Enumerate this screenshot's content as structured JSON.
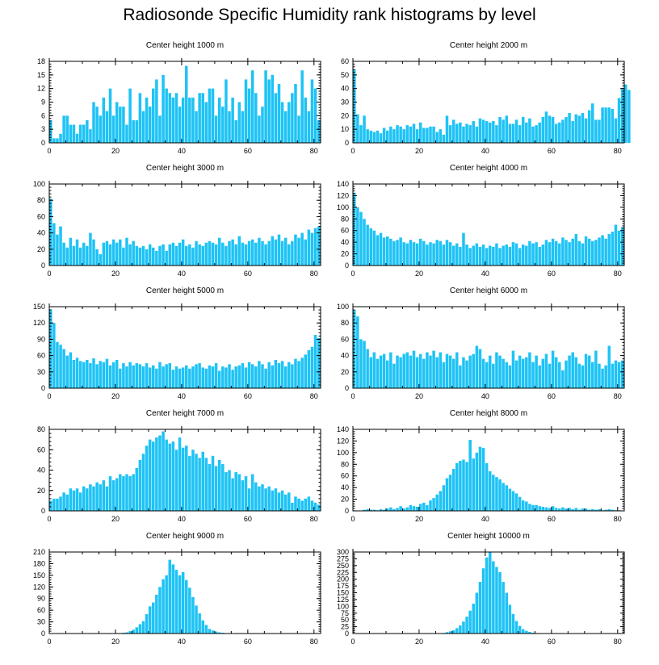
{
  "title": "Radiosonde Specific Humidity rank histograms by level",
  "colors": {
    "bar": "#1ec3f5",
    "axis": "#000000"
  },
  "chart_data": [
    {
      "type": "bar",
      "title": "Center height 1000 m",
      "xlim": [
        0,
        82
      ],
      "ylim": [
        0,
        18
      ],
      "xticks": [
        0,
        20,
        40,
        60,
        80
      ],
      "yticks": [
        0,
        3,
        6,
        9,
        12,
        15,
        18
      ],
      "values": [
        5,
        1,
        1,
        2,
        6,
        6,
        4,
        4,
        2,
        4,
        4,
        5,
        3,
        9,
        8,
        6,
        10,
        7,
        12,
        6,
        9,
        8,
        8,
        4,
        12,
        5,
        5,
        11,
        7,
        10,
        8,
        12,
        14,
        6,
        15,
        12,
        11,
        10,
        11,
        8,
        10,
        17,
        10,
        10,
        7,
        11,
        11,
        9,
        12,
        12,
        6,
        10,
        8,
        14,
        7,
        10,
        5,
        9,
        7,
        14,
        12,
        16,
        11,
        6,
        8,
        16,
        14,
        15,
        11,
        13,
        9,
        7,
        9,
        11,
        13,
        6,
        16,
        10,
        7,
        14,
        12,
        5
      ]
    },
    {
      "type": "bar",
      "title": "Center height 2000 m",
      "xlim": [
        0,
        82
      ],
      "ylim": [
        0,
        60
      ],
      "xticks": [
        0,
        20,
        40,
        60,
        80
      ],
      "yticks": [
        0,
        10,
        20,
        30,
        40,
        50,
        60
      ],
      "values": [
        54,
        21,
        13,
        20,
        10,
        9,
        8,
        9,
        7,
        11,
        9,
        12,
        10,
        13,
        12,
        10,
        13,
        12,
        14,
        10,
        15,
        11,
        11,
        12,
        12,
        8,
        10,
        6,
        20,
        13,
        17,
        14,
        15,
        12,
        14,
        13,
        16,
        12,
        18,
        17,
        16,
        15,
        16,
        13,
        19,
        17,
        20,
        14,
        14,
        17,
        13,
        19,
        15,
        18,
        12,
        13,
        15,
        19,
        23,
        20,
        19,
        14,
        15,
        17,
        19,
        22,
        16,
        21,
        20,
        22,
        18,
        24,
        29,
        17,
        17,
        26,
        26,
        26,
        25,
        18,
        33,
        40,
        43,
        39
      ]
    },
    {
      "type": "bar",
      "title": "Center height 3000 m",
      "xlim": [
        0,
        82
      ],
      "ylim": [
        0,
        100
      ],
      "xticks": [
        0,
        20,
        40,
        60,
        80
      ],
      "yticks": [
        0,
        20,
        40,
        60,
        80,
        100
      ],
      "values": [
        82,
        52,
        38,
        48,
        28,
        22,
        34,
        24,
        32,
        22,
        28,
        24,
        40,
        32,
        20,
        14,
        28,
        30,
        26,
        32,
        28,
        32,
        22,
        34,
        26,
        30,
        24,
        22,
        24,
        20,
        26,
        22,
        18,
        24,
        26,
        18,
        26,
        28,
        24,
        28,
        32,
        24,
        26,
        22,
        30,
        26,
        24,
        28,
        30,
        28,
        26,
        34,
        28,
        24,
        30,
        32,
        26,
        36,
        28,
        26,
        30,
        32,
        28,
        34,
        30,
        26,
        30,
        36,
        32,
        38,
        30,
        34,
        26,
        30,
        38,
        34,
        40,
        32,
        44,
        40,
        46,
        48
      ]
    },
    {
      "type": "bar",
      "title": "Center height 4000 m",
      "xlim": [
        0,
        82
      ],
      "ylim": [
        0,
        140
      ],
      "xticks": [
        0,
        20,
        40,
        60,
        80
      ],
      "yticks": [
        0,
        20,
        40,
        60,
        80,
        100,
        120,
        140
      ],
      "values": [
        125,
        100,
        92,
        80,
        70,
        64,
        60,
        52,
        56,
        48,
        50,
        46,
        42,
        44,
        48,
        40,
        38,
        44,
        40,
        38,
        46,
        42,
        36,
        40,
        38,
        44,
        42,
        36,
        44,
        40,
        34,
        38,
        32,
        56,
        36,
        30,
        34,
        38,
        32,
        36,
        30,
        34,
        32,
        38,
        30,
        34,
        36,
        32,
        40,
        38,
        30,
        36,
        34,
        42,
        38,
        40,
        32,
        36,
        44,
        40,
        46,
        42,
        38,
        48,
        44,
        40,
        46,
        54,
        42,
        38,
        50,
        46,
        42,
        44,
        48,
        52,
        46,
        54,
        58,
        70,
        60,
        66
      ]
    },
    {
      "type": "bar",
      "title": "Center height 5000 m",
      "xlim": [
        0,
        82
      ],
      "ylim": [
        0,
        150
      ],
      "xticks": [
        0,
        20,
        40,
        60,
        80
      ],
      "yticks": [
        0,
        30,
        60,
        90,
        120,
        150
      ],
      "values": [
        145,
        120,
        85,
        80,
        72,
        60,
        66,
        52,
        56,
        50,
        48,
        52,
        46,
        55,
        44,
        50,
        48,
        54,
        42,
        48,
        52,
        36,
        46,
        40,
        48,
        42,
        46,
        44,
        40,
        46,
        38,
        42,
        36,
        48,
        40,
        44,
        46,
        34,
        40,
        36,
        38,
        42,
        36,
        40,
        44,
        46,
        38,
        36,
        42,
        40,
        46,
        32,
        40,
        38,
        44,
        34,
        40,
        42,
        46,
        38,
        48,
        44,
        40,
        50,
        44,
        36,
        48,
        42,
        52,
        46,
        50,
        40,
        48,
        44,
        54,
        50,
        56,
        62,
        70,
        76,
        98,
        92
      ]
    },
    {
      "type": "bar",
      "title": "Center height 6000 m",
      "xlim": [
        0,
        82
      ],
      "ylim": [
        0,
        100
      ],
      "xticks": [
        0,
        20,
        40,
        60,
        80
      ],
      "yticks": [
        0,
        20,
        40,
        60,
        80,
        100
      ],
      "values": [
        96,
        88,
        60,
        58,
        48,
        38,
        44,
        36,
        40,
        42,
        34,
        44,
        30,
        40,
        38,
        42,
        44,
        40,
        46,
        38,
        42,
        36,
        44,
        40,
        46,
        38,
        44,
        32,
        42,
        40,
        36,
        44,
        28,
        38,
        34,
        40,
        42,
        52,
        48,
        36,
        32,
        40,
        30,
        44,
        40,
        36,
        32,
        28,
        46,
        34,
        40,
        36,
        38,
        44,
        32,
        40,
        28,
        36,
        42,
        30,
        46,
        38,
        32,
        22,
        34,
        40,
        44,
        38,
        30,
        28,
        42,
        40,
        32,
        46,
        30,
        24,
        28,
        52,
        30,
        34,
        32,
        34
      ]
    },
    {
      "type": "bar",
      "title": "Center height 7000 m",
      "xlim": [
        0,
        82
      ],
      "ylim": [
        0,
        80
      ],
      "xticks": [
        0,
        20,
        40,
        60,
        80
      ],
      "yticks": [
        0,
        20,
        40,
        60,
        80
      ],
      "values": [
        10,
        12,
        12,
        14,
        18,
        16,
        22,
        20,
        22,
        18,
        24,
        22,
        26,
        24,
        28,
        26,
        30,
        24,
        34,
        30,
        32,
        36,
        34,
        36,
        34,
        36,
        42,
        50,
        56,
        64,
        70,
        68,
        72,
        74,
        78,
        70,
        66,
        68,
        60,
        72,
        62,
        64,
        54,
        60,
        56,
        52,
        58,
        52,
        46,
        54,
        44,
        50,
        46,
        38,
        40,
        32,
        38,
        36,
        30,
        34,
        22,
        36,
        28,
        24,
        26,
        22,
        24,
        20,
        22,
        18,
        20,
        16,
        18,
        8,
        14,
        12,
        10,
        12,
        14,
        10,
        8,
        6
      ]
    },
    {
      "type": "bar",
      "title": "Center height 8000 m",
      "xlim": [
        0,
        82
      ],
      "ylim": [
        0,
        140
      ],
      "xticks": [
        0,
        20,
        40,
        60,
        80
      ],
      "yticks": [
        0,
        20,
        40,
        60,
        80,
        100,
        120,
        140
      ],
      "values": [
        1,
        0,
        0,
        2,
        3,
        2,
        2,
        1,
        3,
        2,
        4,
        6,
        3,
        5,
        8,
        4,
        6,
        10,
        8,
        7,
        12,
        14,
        10,
        18,
        22,
        28,
        34,
        44,
        56,
        62,
        72,
        82,
        86,
        88,
        84,
        122,
        90,
        100,
        110,
        108,
        82,
        68,
        62,
        58,
        54,
        48,
        44,
        38,
        34,
        30,
        24,
        18,
        16,
        12,
        10,
        10,
        8,
        7,
        6,
        5,
        8,
        5,
        4,
        6,
        4,
        5,
        3,
        5,
        2,
        4,
        4,
        2,
        3,
        2,
        3,
        1,
        2,
        3,
        2,
        1,
        1,
        0
      ]
    },
    {
      "type": "bar",
      "title": "Center height 9000 m",
      "xlim": [
        0,
        82
      ],
      "ylim": [
        0,
        210
      ],
      "xticks": [
        0,
        20,
        40,
        60,
        80
      ],
      "yticks": [
        0,
        30,
        60,
        90,
        120,
        150,
        180,
        210
      ],
      "values": [
        0,
        0,
        0,
        0,
        0,
        0,
        0,
        0,
        0,
        0,
        0,
        0,
        0,
        0,
        0,
        0,
        0,
        0,
        0,
        0,
        0,
        0,
        2,
        3,
        6,
        10,
        16,
        24,
        32,
        50,
        70,
        80,
        100,
        120,
        140,
        150,
        190,
        178,
        164,
        150,
        158,
        138,
        118,
        94,
        72,
        52,
        34,
        22,
        12,
        8,
        5,
        3,
        2,
        1,
        1,
        1,
        0,
        0,
        0,
        0,
        0,
        0,
        0,
        0,
        0,
        0,
        0,
        0,
        0,
        0,
        0,
        0,
        0,
        0,
        0,
        0,
        0,
        0,
        0,
        0,
        0,
        0
      ]
    },
    {
      "type": "bar",
      "title": "Center height 10000 m",
      "xlim": [
        0,
        82
      ],
      "ylim": [
        0,
        300
      ],
      "xticks": [
        0,
        20,
        40,
        60,
        80
      ],
      "yticks": [
        0,
        25,
        50,
        75,
        100,
        125,
        150,
        175,
        200,
        225,
        250,
        275,
        300
      ],
      "values": [
        0,
        0,
        0,
        0,
        0,
        0,
        0,
        0,
        0,
        0,
        0,
        0,
        0,
        0,
        0,
        0,
        0,
        0,
        0,
        0,
        0,
        0,
        0,
        0,
        0,
        0,
        1,
        2,
        5,
        8,
        12,
        20,
        30,
        44,
        62,
        84,
        110,
        150,
        190,
        240,
        280,
        300,
        266,
        245,
        226,
        190,
        150,
        106,
        72,
        46,
        28,
        16,
        10,
        6,
        3,
        2,
        1,
        0,
        0,
        0,
        0,
        0,
        0,
        0,
        0,
        0,
        0,
        0,
        0,
        0,
        0,
        0,
        0,
        0,
        0,
        0,
        0,
        0,
        0,
        0,
        0,
        0
      ]
    }
  ]
}
